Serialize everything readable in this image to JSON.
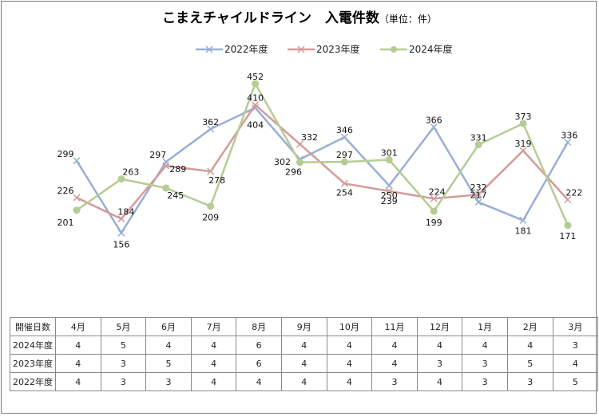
{
  "title": "こまえチャイルドライン　入電件数",
  "title_unit": "（単位：件）",
  "chart_data": {
    "type": "line",
    "categories": [
      "4月",
      "5月",
      "6月",
      "7月",
      "8月",
      "9月",
      "10月",
      "11月",
      "12月",
      "1月",
      "2月",
      "3月"
    ],
    "series": [
      {
        "name": "2022年度",
        "color": "#9aaed4",
        "marker": "x",
        "values": [
          299,
          156,
          297,
          362,
          404,
          302,
          346,
          250,
          366,
          217,
          181,
          336
        ]
      },
      {
        "name": "2023年度",
        "color": "#d49a9a",
        "marker": "x",
        "values": [
          226,
          184,
          289,
          278,
          410,
          332,
          254,
          239,
          224,
          232,
          319,
          222
        ]
      },
      {
        "name": "2024年度",
        "color": "#b6cc94",
        "marker": "circle",
        "values": [
          201,
          263,
          245,
          209,
          452,
          296,
          297,
          301,
          199,
          331,
          373,
          171
        ]
      }
    ],
    "ylim": [
      0,
      470
    ],
    "grid": false,
    "legend": "top"
  },
  "table": {
    "header_label": "開催日数",
    "rows": [
      {
        "label": "2024年度",
        "values": [
          "4",
          "5",
          "4",
          "4",
          "6",
          "4",
          "4",
          "4",
          "4",
          "4",
          "4",
          "3"
        ]
      },
      {
        "label": "2023年度",
        "values": [
          "4",
          "3",
          "5",
          "4",
          "6",
          "4",
          "4",
          "4",
          "3",
          "3",
          "5",
          "4"
        ]
      },
      {
        "label": "2022年度",
        "values": [
          "4",
          "3",
          "3",
          "4",
          "4",
          "4",
          "4",
          "3",
          "4",
          "3",
          "3",
          "5"
        ]
      }
    ]
  }
}
